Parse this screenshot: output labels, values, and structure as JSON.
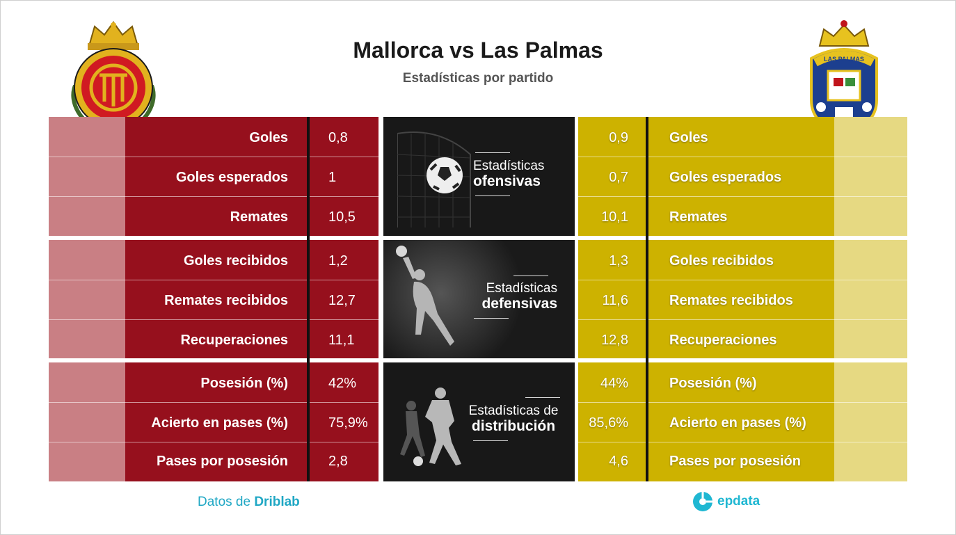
{
  "title": "Mallorca vs Las Palmas",
  "subtitle": "Estadísticas por partido",
  "colors": {
    "mallorca": "#96101d",
    "las_palmas": "#cdb200",
    "center": "#181818",
    "credit": "#1fa7c4"
  },
  "home_team": {
    "crest_icon": "mallorca-crest-icon",
    "crest_text": ""
  },
  "away_team": {
    "crest_icon": "las-palmas-crest-icon",
    "crest_text": "LAS PALMAS"
  },
  "sections": [
    {
      "title_line1": "Estadísticas",
      "title_line2": "ofensivas",
      "icon": "football-net-icon",
      "rows": [
        {
          "label": "Goles",
          "home": "0,8",
          "away": "0,9"
        },
        {
          "label": "Goles esperados",
          "home": "1",
          "away": "0,7"
        },
        {
          "label": "Remates",
          "home": "10,5",
          "away": "10,1"
        }
      ]
    },
    {
      "title_line1": "Estadísticas",
      "title_line2": "defensivas",
      "icon": "goalkeeper-icon",
      "rows": [
        {
          "label": "Goles recibidos",
          "home": "1,2",
          "away": "1,3"
        },
        {
          "label": "Remates recibidos",
          "home": "12,7",
          "away": "11,6"
        },
        {
          "label": "Recuperaciones",
          "home": "11,1",
          "away": "12,8"
        }
      ]
    },
    {
      "title_line1": "Estadísticas de",
      "title_line2": "distribución",
      "icon": "players-icon",
      "rows": [
        {
          "label": "Posesión (%)",
          "home": "42%",
          "away": "44%"
        },
        {
          "label": "Acierto en pases (%)",
          "home": "75,9%",
          "away": "85,6%"
        },
        {
          "label": "Pases por posesión",
          "home": "2,8",
          "away": "4,6"
        }
      ]
    }
  ],
  "credit": {
    "prefix": "Datos de ",
    "source": "Driblab"
  },
  "brand": {
    "name": "epdata",
    "icon": "epdata-logo-icon"
  }
}
